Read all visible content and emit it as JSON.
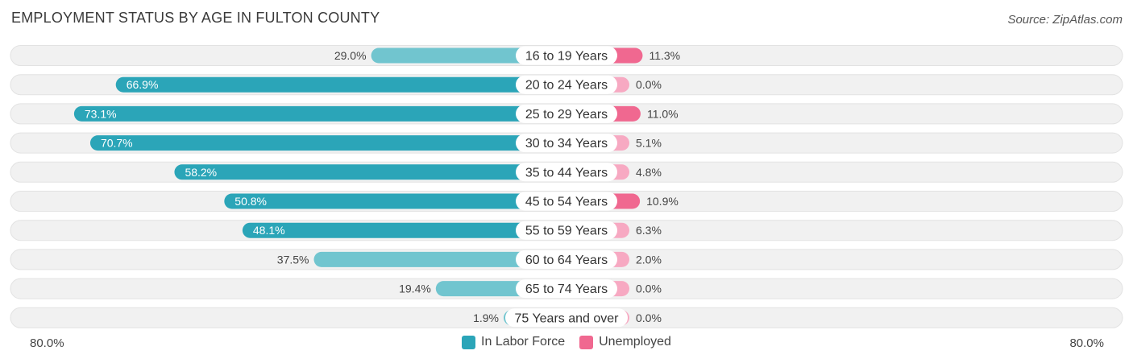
{
  "title": "EMPLOYMENT STATUS BY AGE IN FULTON COUNTY",
  "source": "Source: ZipAtlas.com",
  "colors": {
    "labor_strong": "#2ba5b8",
    "labor_light": "#71c5cf",
    "unemp_strong": "#f06890",
    "unemp_light": "#f7a9c2",
    "track": "#f1f1f1"
  },
  "chart_data": {
    "type": "bar",
    "orientation": "diverging-horizontal",
    "categories": [
      "16 to 19 Years",
      "20 to 24 Years",
      "25 to 29 Years",
      "30 to 34 Years",
      "35 to 44 Years",
      "45 to 54 Years",
      "55 to 59 Years",
      "60 to 64 Years",
      "65 to 74 Years",
      "75 Years and over"
    ],
    "series": [
      {
        "name": "In Labor Force",
        "side": "left",
        "values": [
          29.0,
          66.9,
          73.1,
          70.7,
          58.2,
          50.8,
          48.1,
          37.5,
          19.4,
          1.9
        ],
        "labels": [
          "29.0%",
          "66.9%",
          "73.1%",
          "70.7%",
          "58.2%",
          "50.8%",
          "48.1%",
          "37.5%",
          "19.4%",
          "1.9%"
        ]
      },
      {
        "name": "Unemployed",
        "side": "right",
        "values": [
          11.3,
          0.0,
          11.0,
          5.1,
          4.8,
          10.9,
          6.3,
          2.0,
          0.0,
          0.0
        ],
        "labels": [
          "11.3%",
          "0.0%",
          "11.0%",
          "5.1%",
          "4.8%",
          "10.9%",
          "6.3%",
          "2.0%",
          "0.0%",
          "0.0%"
        ]
      }
    ],
    "xlim": [
      -80,
      80
    ],
    "axis_left_label": "80.0%",
    "axis_right_label": "80.0%",
    "legend": [
      "In Labor Force",
      "Unemployed"
    ],
    "legend_position": "bottom-center"
  }
}
